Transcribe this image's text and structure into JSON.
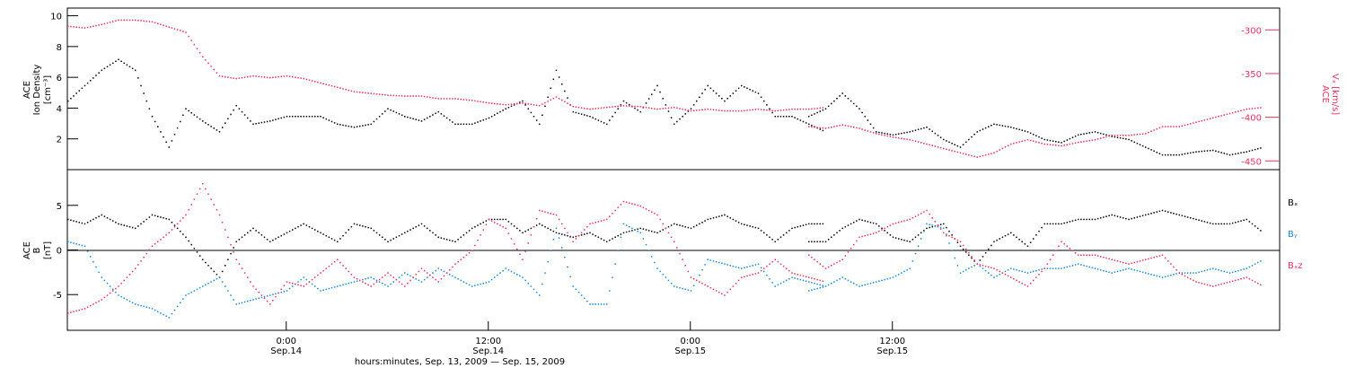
{
  "colors": {
    "black_series": "#000000",
    "red_series": "#e8335f",
    "blue_series": "#1e88d8",
    "axis": "#000000",
    "background": "#ffffff"
  },
  "chart_data": [
    {
      "type": "scatter",
      "panel": "top",
      "left_axis": {
        "label_line1": "ACE",
        "label_line2": "Ion Density",
        "label_units": "[cm⁻³]",
        "ylim": [
          0,
          10.5
        ],
        "ticks": [
          "2",
          "4",
          "6",
          "8",
          "10"
        ],
        "tick_values": [
          2,
          4,
          6,
          8,
          10
        ]
      },
      "right_axis": {
        "label_line1": "ACE",
        "label_line2": "Vₓ [km/s]",
        "ylim": [
          -460,
          -275
        ],
        "ticks": [
          "-300",
          "-350",
          "-400",
          "-450"
        ],
        "tick_values": [
          -300,
          -350,
          -400,
          -450
        ],
        "color": "#e8335f"
      },
      "series": [
        {
          "color": "#000000",
          "axis": "left",
          "x_hours": [
            0,
            1,
            2,
            3,
            4,
            5,
            6,
            7,
            8,
            9,
            10,
            11,
            12,
            13,
            14,
            15,
            16,
            17,
            18,
            19,
            20,
            21,
            22,
            23,
            24,
            25,
            26,
            27,
            28,
            29,
            30,
            31,
            32,
            33,
            34,
            35,
            36,
            37,
            38,
            39,
            40,
            41,
            42,
            43,
            44,
            45,
            46,
            47,
            48,
            49,
            50,
            51,
            52,
            53,
            54,
            55,
            56,
            57
          ],
          "y": [
            4.5,
            5.5,
            6.5,
            7.2,
            6.5,
            3.5,
            1.5,
            4.0,
            3.2,
            2.5,
            4.2,
            3.0,
            3.2,
            3.5,
            3.5,
            3.5,
            3.0,
            2.8,
            3.0,
            4.0,
            3.5,
            3.2,
            3.8,
            3.0,
            3.0,
            3.4,
            4.0,
            4.5,
            3.0,
            6.5,
            3.8,
            3.5,
            3.0,
            4.5,
            3.8,
            5.5,
            3.0,
            4.0,
            5.5,
            4.5,
            5.5,
            5.0,
            3.5,
            3.5,
            3.0,
            2.5,
            null,
            null,
            null,
            null,
            null,
            null,
            null,
            null,
            null,
            null,
            null,
            null
          ]
        },
        {
          "color": "#000000",
          "axis": "left",
          "x_hours": [
            44,
            45,
            46,
            47,
            48,
            49,
            50,
            51,
            52,
            53,
            54,
            55,
            56,
            57,
            58,
            59,
            60,
            61,
            62,
            63,
            64,
            65,
            66,
            67,
            68,
            69,
            70,
            71
          ],
          "y": [
            3.5,
            4.0,
            5.0,
            4.0,
            2.5,
            2.3,
            2.5,
            2.8,
            2.0,
            1.5,
            2.5,
            3.0,
            2.8,
            2.5,
            2.0,
            1.8,
            2.3,
            2.5,
            2.2,
            2.0,
            1.5,
            1.0,
            1.0,
            1.2,
            1.3,
            1.0,
            1.2,
            1.5
          ]
        },
        {
          "color": "#e8335f",
          "axis": "right",
          "x_hours": [
            0,
            1,
            2,
            3,
            4,
            5,
            6,
            7,
            8,
            9,
            10,
            11,
            12,
            13,
            14,
            15,
            16,
            17,
            18,
            19,
            20,
            21,
            22,
            23,
            24,
            25,
            26,
            27,
            28,
            29,
            30,
            31,
            32,
            33,
            34,
            35,
            36,
            37,
            38,
            39,
            40,
            41,
            42,
            43,
            44,
            45
          ],
          "y": [
            -295,
            -297,
            -293,
            -288,
            -288,
            -290,
            -296,
            -302,
            -330,
            -352,
            -355,
            -352,
            -354,
            -352,
            -355,
            -360,
            -365,
            -370,
            -372,
            -374,
            -375,
            -375,
            -378,
            -378,
            -380,
            -383,
            -385,
            -383,
            -386,
            -376,
            -387,
            -390,
            -388,
            -386,
            -387,
            -390,
            -388,
            -392,
            -390,
            -392,
            -392,
            -390,
            -392,
            -390,
            -390,
            -388
          ]
        },
        {
          "color": "#e8335f",
          "axis": "right",
          "x_hours": [
            44,
            45,
            46,
            47,
            48,
            49,
            50,
            51,
            52,
            53,
            54,
            55,
            56,
            57,
            58,
            59,
            60,
            61,
            62,
            63,
            64,
            65,
            66,
            67,
            68,
            69,
            70,
            71
          ],
          "y": [
            -410,
            -412,
            -408,
            -412,
            -418,
            -422,
            -425,
            -430,
            -435,
            -440,
            -445,
            -440,
            -430,
            -425,
            -430,
            -432,
            -428,
            -425,
            -420,
            -420,
            -418,
            -410,
            -410,
            -405,
            -400,
            -395,
            -390,
            -388
          ]
        }
      ]
    },
    {
      "type": "scatter",
      "panel": "bottom",
      "left_axis": {
        "label_line1": "ACE",
        "label_line2": "B",
        "label_units": "[nT]",
        "ylim": [
          -9,
          9
        ],
        "ticks": [
          "-5",
          "0",
          "5"
        ],
        "tick_values": [
          -5,
          0,
          5
        ]
      },
      "legend": [
        {
          "name": "Bₓ",
          "color": "#000000"
        },
        {
          "name": "Bᵧ",
          "color": "#1e88d8"
        },
        {
          "name": "Bₓz",
          "color": "#e8335f"
        }
      ],
      "series": [
        {
          "color": "#000000",
          "x_hours": [
            0,
            1,
            2,
            3,
            4,
            5,
            6,
            7,
            8,
            9,
            10,
            11,
            12,
            13,
            14,
            15,
            16,
            17,
            18,
            19,
            20,
            21,
            22,
            23,
            24,
            25,
            26,
            27,
            28,
            29,
            30,
            31,
            32,
            33,
            34,
            35,
            36,
            37,
            38,
            39,
            40,
            41,
            42,
            43,
            44,
            45
          ],
          "y": [
            3.5,
            3.0,
            4.0,
            3.0,
            2.5,
            4.0,
            3.5,
            1.5,
            -1.0,
            -3.0,
            1.0,
            2.5,
            1.0,
            2.0,
            3.0,
            2.0,
            1.0,
            3.0,
            2.5,
            1.0,
            2.0,
            3.0,
            1.5,
            1.0,
            2.5,
            3.5,
            3.5,
            2.0,
            3.0,
            2.0,
            1.5,
            2.0,
            1.0,
            2.0,
            2.5,
            2.0,
            3.0,
            2.5,
            3.5,
            4.0,
            3.0,
            2.5,
            1.0,
            2.5,
            3.0,
            3.0
          ]
        },
        {
          "color": "#000000",
          "x_hours": [
            44,
            45,
            46,
            47,
            48,
            49,
            50,
            51,
            52,
            53,
            54,
            55,
            56,
            57,
            58,
            59,
            60,
            61,
            62,
            63,
            64,
            65,
            66,
            67,
            68,
            69,
            70,
            71
          ],
          "y": [
            1.0,
            1.0,
            2.5,
            3.5,
            3.0,
            1.5,
            1.0,
            2.5,
            3.0,
            0.5,
            -1.5,
            1.0,
            2.0,
            0.5,
            3.0,
            3.0,
            3.5,
            3.5,
            4.0,
            3.5,
            4.0,
            4.5,
            4.0,
            3.5,
            3.0,
            3.0,
            3.5,
            2.0
          ]
        },
        {
          "color": "#1e88d8",
          "x_hours": [
            0,
            1,
            2,
            3,
            4,
            5,
            6,
            7,
            8,
            9,
            10,
            11,
            12,
            13,
            14,
            15,
            16,
            17,
            18,
            19,
            20,
            21,
            22,
            23,
            24,
            25,
            26,
            27,
            28,
            29,
            30,
            31,
            32,
            33,
            34,
            35,
            36,
            37,
            38,
            39,
            40,
            41,
            42,
            43,
            44,
            45
          ],
          "y": [
            1.0,
            0.5,
            -3.0,
            -5.0,
            -6.0,
            -6.5,
            -7.5,
            -5.0,
            -4.0,
            -3.0,
            -6.0,
            -5.5,
            -5.0,
            -4.5,
            -3.0,
            -4.5,
            -4.0,
            -3.5,
            -3.0,
            -4.0,
            -2.5,
            -3.5,
            -2.0,
            -3.0,
            -4.0,
            -3.5,
            -2.0,
            -3.0,
            -5.0,
            2.5,
            -4.0,
            -6.0,
            -6.0,
            3.0,
            2.0,
            -2.0,
            -4.0,
            -4.5,
            -1.0,
            -1.5,
            -2.0,
            -1.5,
            -4.0,
            -3.0,
            -3.5,
            -4.0
          ]
        },
        {
          "color": "#1e88d8",
          "x_hours": [
            44,
            45,
            46,
            47,
            48,
            49,
            50,
            51,
            52,
            53,
            54,
            55,
            56,
            57,
            58,
            59,
            60,
            61,
            62,
            63,
            64,
            65,
            66,
            67,
            68,
            69,
            70,
            71
          ],
          "y": [
            -4.5,
            -4.0,
            -3.0,
            -4.0,
            -3.5,
            -3.0,
            -2.0,
            3.0,
            2.5,
            -2.5,
            -1.5,
            -3.0,
            -2.0,
            -2.5,
            -2.0,
            -2.0,
            -1.5,
            -2.0,
            -2.5,
            -2.0,
            -2.5,
            -3.0,
            -2.5,
            -2.5,
            -2.0,
            -2.5,
            -2.0,
            -1.0
          ]
        },
        {
          "color": "#e8335f",
          "x_hours": [
            0,
            1,
            2,
            3,
            4,
            5,
            6,
            7,
            8,
            9,
            10,
            11,
            12,
            13,
            14,
            15,
            16,
            17,
            18,
            19,
            20,
            21,
            22,
            23,
            24,
            25,
            26,
            27,
            28,
            29,
            30,
            31,
            32,
            33,
            34,
            35,
            36,
            37,
            38,
            39,
            40,
            41,
            42,
            43,
            44,
            45
          ],
          "y": [
            -7.0,
            -6.5,
            -5.5,
            -4.0,
            -2.0,
            0.5,
            2.0,
            4.0,
            7.5,
            4.0,
            -1.0,
            -4.0,
            -6.0,
            -3.5,
            -4.0,
            -2.5,
            -1.0,
            -3.0,
            -4.0,
            -2.5,
            -4.0,
            -2.0,
            -3.5,
            -1.5,
            0.0,
            3.5,
            2.5,
            -1.0,
            4.5,
            4.0,
            1.0,
            3.0,
            3.5,
            5.5,
            5.0,
            4.0,
            1.0,
            -3.0,
            -4.0,
            -5.0,
            -3.0,
            -2.5,
            -1.0,
            -2.5,
            -3.0,
            -3.5
          ]
        },
        {
          "color": "#e8335f",
          "x_hours": [
            44,
            45,
            46,
            47,
            48,
            49,
            50,
            51,
            52,
            53,
            54,
            55,
            56,
            57,
            58,
            59,
            60,
            61,
            62,
            63,
            64,
            65,
            66,
            67,
            68,
            69,
            70,
            71
          ],
          "y": [
            -0.5,
            -2.0,
            -1.0,
            1.5,
            2.0,
            3.0,
            3.5,
            4.5,
            2.0,
            1.0,
            -1.5,
            -2.0,
            -3.0,
            -4.0,
            -2.0,
            1.0,
            -0.5,
            -0.5,
            -1.0,
            -1.5,
            -1.0,
            -0.5,
            -2.5,
            -3.5,
            -4.0,
            -3.5,
            -3.0,
            -4.0
          ]
        }
      ]
    }
  ],
  "x_axis": {
    "range_hours": [
      0,
      72
    ],
    "tick_labels": [
      {
        "hour": 13.0,
        "time": "0:00",
        "date": "Sep.14"
      },
      {
        "hour": 25.0,
        "time": "12:00",
        "date": "Sep.14"
      },
      {
        "hour": 37.0,
        "time": "0:00",
        "date": "Sep.15"
      },
      {
        "hour": 49.0,
        "time": "12:00",
        "date": "Sep.15"
      }
    ],
    "title": "hours:minutes, Sep. 13, 2009 — Sep. 15, 2009"
  },
  "labels": {
    "top_left_1": "ACE",
    "top_left_2": "Ion Density",
    "top_left_3": "[cm⁻³]",
    "top_right_1": "ACE",
    "top_right_2": "Vₓ [km/s]",
    "bottom_left_1": "ACE",
    "bottom_left_2": "B",
    "bottom_left_3": "[nT]",
    "legend_bx": "Bₓ",
    "legend_by": "Bᵧ",
    "legend_bz": "Bₓz"
  }
}
